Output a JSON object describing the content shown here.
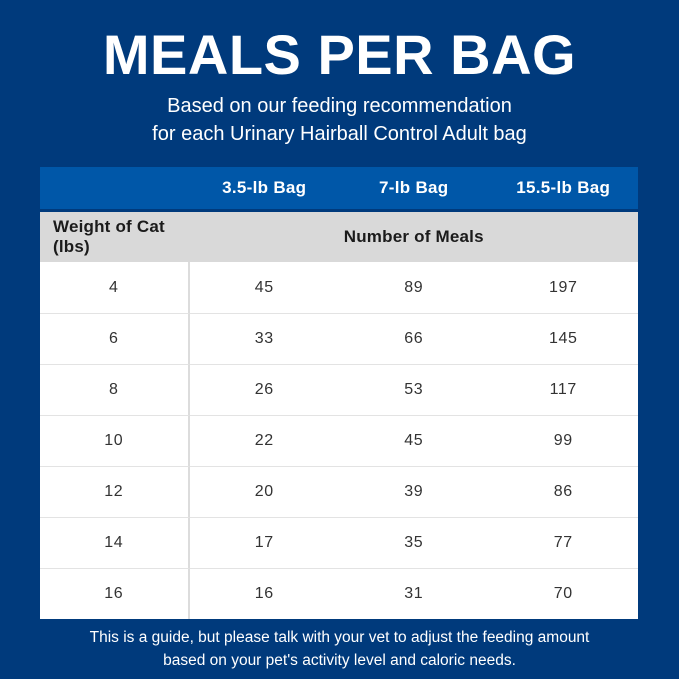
{
  "header": {
    "title": "MEALS PER BAG",
    "subtitle_line1": "Based on our feeding recommendation",
    "subtitle_line2": "for each Urinary Hairball Control Adult bag"
  },
  "table": {
    "bag_columns": [
      "3.5-lb Bag",
      "7-lb Bag",
      "15.5-lb Bag"
    ],
    "row_header": "Weight of Cat (lbs)",
    "meals_header": "Number of Meals",
    "rows": [
      {
        "weight": "4",
        "meals": [
          "45",
          "89",
          "197"
        ]
      },
      {
        "weight": "6",
        "meals": [
          "33",
          "66",
          "145"
        ]
      },
      {
        "weight": "8",
        "meals": [
          "26",
          "53",
          "117"
        ]
      },
      {
        "weight": "10",
        "meals": [
          "22",
          "45",
          "99"
        ]
      },
      {
        "weight": "12",
        "meals": [
          "20",
          "39",
          "86"
        ]
      },
      {
        "weight": "14",
        "meals": [
          "17",
          "35",
          "77"
        ]
      },
      {
        "weight": "16",
        "meals": [
          "16",
          "31",
          "70"
        ]
      }
    ]
  },
  "footer": {
    "line1": "This is a guide, but please talk with your vet to adjust the feeding amount",
    "line2": "based on your pet's activity level and caloric needs."
  },
  "colors": {
    "background": "#003A7C",
    "header_bar_blue": "#0057A8",
    "subheader_gray": "#D9D9D9",
    "body_white": "#FFFFFF",
    "body_text": "#333333",
    "divider": "#E3E3E3",
    "title_text": "#FFFFFF"
  },
  "chart_data": {
    "type": "table",
    "title": "MEALS PER BAG",
    "subtitle": "Based on our feeding recommendation for each Urinary Hairball Control Adult bag",
    "columns": [
      "Weight of Cat (lbs)",
      "3.5-lb Bag",
      "7-lb Bag",
      "15.5-lb Bag"
    ],
    "value_label": "Number of Meals",
    "rows": [
      [
        4,
        45,
        89,
        197
      ],
      [
        6,
        33,
        66,
        145
      ],
      [
        8,
        26,
        53,
        117
      ],
      [
        10,
        22,
        45,
        99
      ],
      [
        12,
        20,
        39,
        86
      ],
      [
        14,
        17,
        35,
        77
      ],
      [
        16,
        16,
        31,
        70
      ]
    ],
    "note": "This is a guide, but please talk with your vet to adjust the feeding amount based on your pet's activity level and caloric needs."
  }
}
